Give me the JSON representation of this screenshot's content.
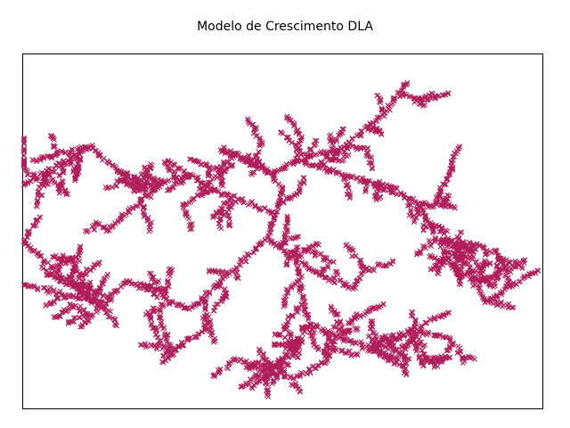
{
  "chart_data": {
    "type": "scatter",
    "title": "Modelo de Crescimento DLA",
    "xlabel": "",
    "ylabel": "",
    "xlim": [
      0,
      100
    ],
    "ylim": [
      0,
      100
    ],
    "axes_visible": false,
    "grid": false,
    "marker": "x",
    "color": "#b01e5a",
    "model": "Diffusion-limited aggregation cluster grown from a central seed",
    "seed_point": [
      47,
      48
    ],
    "branch_tips": [
      [
        0,
        47
      ],
      [
        0,
        35
      ],
      [
        0,
        63
      ],
      [
        2,
        70
      ],
      [
        13,
        74
      ],
      [
        16,
        50
      ],
      [
        28,
        70
      ],
      [
        22,
        62
      ],
      [
        36,
        62
      ],
      [
        38,
        73
      ],
      [
        41,
        72
      ],
      [
        45,
        70
      ],
      [
        53,
        70
      ],
      [
        50,
        62
      ],
      [
        60,
        72
      ],
      [
        62,
        66
      ],
      [
        72,
        62
      ],
      [
        76,
        58
      ],
      [
        70,
        84
      ],
      [
        74,
        92
      ],
      [
        84,
        74
      ],
      [
        83,
        57
      ],
      [
        87,
        45
      ],
      [
        88,
        46
      ],
      [
        96,
        40
      ],
      [
        99,
        39
      ],
      [
        84,
        37
      ],
      [
        89,
        30
      ],
      [
        72,
        14
      ],
      [
        73,
        12
      ],
      [
        77,
        12
      ],
      [
        82,
        20
      ],
      [
        82,
        27
      ],
      [
        60,
        17
      ],
      [
        61,
        20
      ],
      [
        56,
        18
      ],
      [
        64,
        34
      ],
      [
        54,
        30
      ],
      [
        42,
        6
      ],
      [
        44,
        6
      ],
      [
        48,
        7
      ],
      [
        47,
        9
      ],
      [
        37,
        19
      ],
      [
        27,
        13
      ],
      [
        27,
        15
      ],
      [
        32,
        28
      ],
      [
        20,
        36
      ],
      [
        11,
        23
      ],
      [
        8,
        32
      ],
      [
        6,
        37
      ],
      [
        35,
        22
      ],
      [
        52,
        15
      ],
      [
        58,
        37
      ],
      [
        38,
        36
      ]
    ]
  }
}
